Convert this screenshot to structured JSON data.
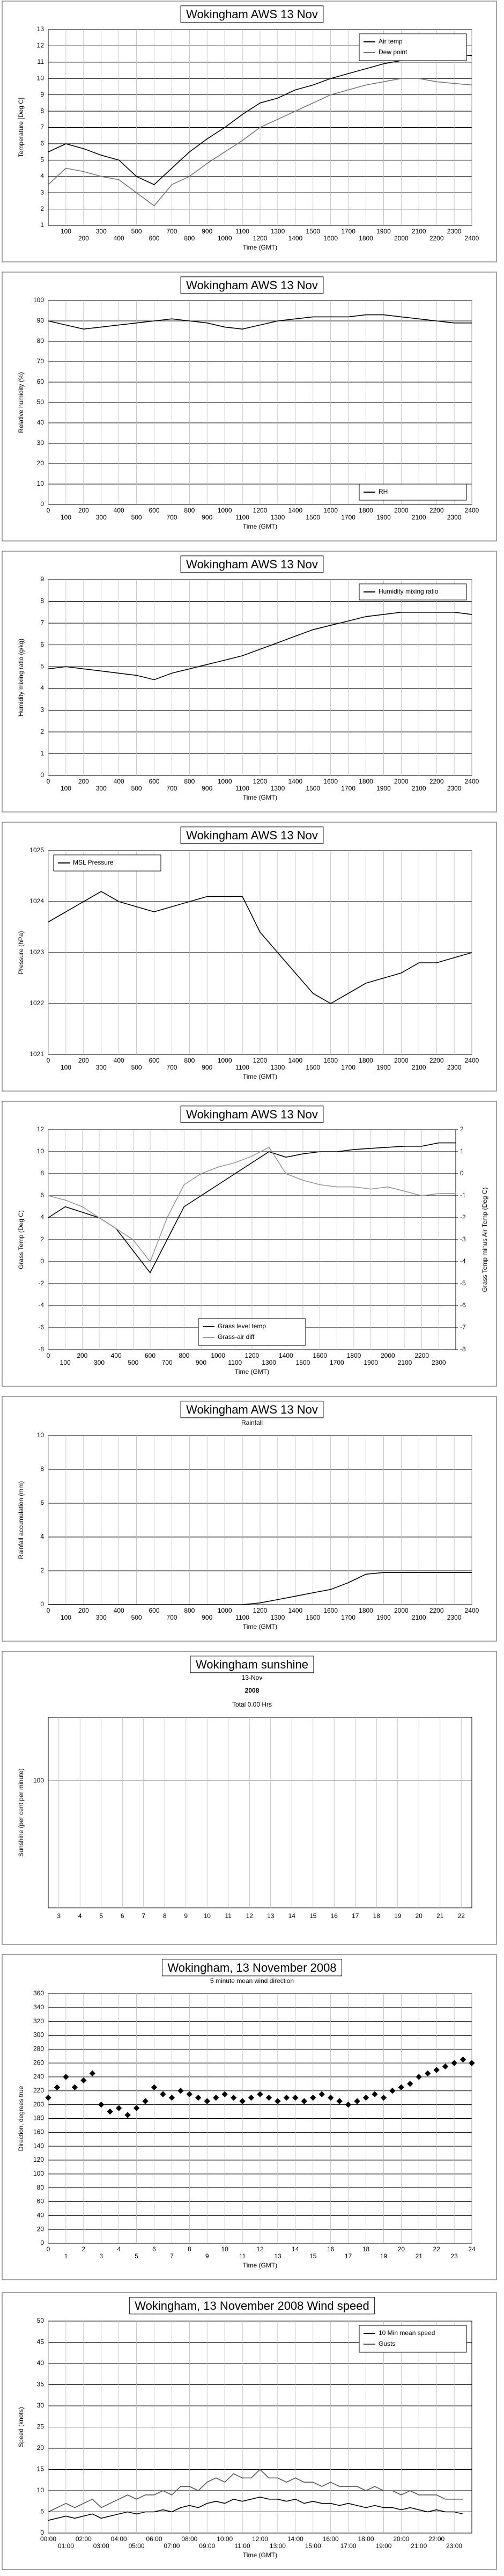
{
  "chart_data": [
    {
      "type": "line",
      "title": "Wokingham AWS 13 Nov",
      "x_label": "Time (GMT)",
      "y_label": "Temperature [Deg C]",
      "x": [
        0,
        100,
        200,
        300,
        400,
        500,
        600,
        700,
        800,
        900,
        1000,
        1100,
        1200,
        1300,
        1400,
        1500,
        1600,
        1700,
        1800,
        1900,
        2000,
        2100,
        2200,
        2300,
        2400
      ],
      "series": [
        {
          "name": "Air temp",
          "color": "#000000",
          "values": [
            5.5,
            6.0,
            5.7,
            5.3,
            5.0,
            4.0,
            3.5,
            4.5,
            5.5,
            6.3,
            7.0,
            7.8,
            8.5,
            8.8,
            9.3,
            9.6,
            10.0,
            10.3,
            10.6,
            10.9,
            11.1,
            11.3,
            11.5,
            11.5,
            11.4
          ]
        },
        {
          "name": "Dew point",
          "color": "#777777",
          "values": [
            3.5,
            4.5,
            4.3,
            4.0,
            3.8,
            3.0,
            2.2,
            3.5,
            4.0,
            4.8,
            5.5,
            6.2,
            7.0,
            7.5,
            8.0,
            8.5,
            9.0,
            9.3,
            9.6,
            9.8,
            10.0,
            10.0,
            9.8,
            9.7,
            9.6
          ]
        }
      ],
      "xlim": [
        0,
        2400
      ],
      "xticks": [
        100,
        200,
        300,
        400,
        500,
        600,
        700,
        800,
        900,
        1000,
        1100,
        1200,
        1300,
        1400,
        1500,
        1600,
        1700,
        1800,
        1900,
        2000,
        2100,
        2200,
        2300,
        2400
      ],
      "ylim": [
        1,
        13
      ],
      "yticks": [
        1,
        2,
        3,
        4,
        5,
        6,
        7,
        8,
        9,
        10,
        11,
        12,
        13
      ],
      "grid": true,
      "legend": "top-right"
    },
    {
      "type": "line",
      "title": "Wokingham AWS 13 Nov",
      "x_label": "Time (GMT)",
      "y_label": "Relative humidity (%)",
      "x": [
        0,
        100,
        200,
        300,
        400,
        500,
        600,
        700,
        800,
        900,
        1000,
        1100,
        1200,
        1300,
        1400,
        1500,
        1600,
        1700,
        1800,
        1900,
        2000,
        2100,
        2200,
        2300,
        2400
      ],
      "series": [
        {
          "name": "RH",
          "color": "#000000",
          "values": [
            90,
            88,
            86,
            87,
            88,
            89,
            90,
            91,
            90,
            89,
            87,
            86,
            88,
            90,
            91,
            92,
            92,
            92,
            93,
            93,
            92,
            91,
            90,
            89,
            89
          ]
        }
      ],
      "xlim": [
        0,
        2400
      ],
      "xticks": [
        0,
        100,
        200,
        300,
        400,
        500,
        600,
        700,
        800,
        900,
        1000,
        1100,
        1200,
        1300,
        1400,
        1500,
        1600,
        1700,
        1800,
        1900,
        2000,
        2100,
        2200,
        2300,
        2400
      ],
      "ylim": [
        0,
        100
      ],
      "yticks": [
        0,
        10,
        20,
        30,
        40,
        50,
        60,
        70,
        80,
        90,
        100
      ],
      "grid": true,
      "legend": "bottom-right"
    },
    {
      "type": "line",
      "title": "Wokingham AWS 13 Nov",
      "x_label": "Time (GMT)",
      "y_label": "Humidity mixing ratio (g/kg)",
      "x": [
        0,
        100,
        200,
        300,
        400,
        500,
        600,
        700,
        800,
        900,
        1000,
        1100,
        1200,
        1300,
        1400,
        1500,
        1600,
        1700,
        1800,
        1900,
        2000,
        2100,
        2200,
        2300,
        2400
      ],
      "series": [
        {
          "name": "Humidity mixing ratio",
          "color": "#000000",
          "values": [
            4.9,
            5.0,
            4.9,
            4.8,
            4.7,
            4.6,
            4.4,
            4.7,
            4.9,
            5.1,
            5.3,
            5.5,
            5.8,
            6.1,
            6.4,
            6.7,
            6.9,
            7.1,
            7.3,
            7.4,
            7.5,
            7.5,
            7.5,
            7.5,
            7.4
          ]
        }
      ],
      "xlim": [
        0,
        2400
      ],
      "xticks": [
        0,
        100,
        200,
        300,
        400,
        500,
        600,
        700,
        800,
        900,
        1000,
        1100,
        1200,
        1300,
        1400,
        1500,
        1600,
        1700,
        1800,
        1900,
        2000,
        2100,
        2200,
        2300,
        2400
      ],
      "ylim": [
        0,
        9
      ],
      "yticks": [
        0,
        1,
        2,
        3,
        4,
        5,
        6,
        7,
        8,
        9
      ],
      "grid": true,
      "legend": "top-right"
    },
    {
      "type": "line",
      "title": "Wokingham AWS 13 Nov",
      "x_label": "Time (GMT)",
      "y_label": "Pressure (hPa)",
      "x": [
        0,
        100,
        200,
        300,
        400,
        500,
        600,
        700,
        800,
        900,
        1000,
        1100,
        1200,
        1300,
        1400,
        1500,
        1600,
        1700,
        1800,
        1900,
        2000,
        2100,
        2200,
        2300,
        2400
      ],
      "series": [
        {
          "name": "MSL Pressure",
          "color": "#000000",
          "values": [
            1023.6,
            1023.8,
            1024.0,
            1024.2,
            1024.0,
            1023.9,
            1023.8,
            1023.9,
            1024.0,
            1024.1,
            1024.1,
            1024.1,
            1023.4,
            1023.0,
            1022.6,
            1022.2,
            1022.0,
            1022.2,
            1022.4,
            1022.5,
            1022.6,
            1022.8,
            1022.8,
            1022.9,
            1023.0
          ]
        }
      ],
      "xlim": [
        0,
        2400
      ],
      "xticks": [
        0,
        100,
        200,
        300,
        400,
        500,
        600,
        700,
        800,
        900,
        1000,
        1100,
        1200,
        1300,
        1400,
        1500,
        1600,
        1700,
        1800,
        1900,
        2000,
        2100,
        2200,
        2300,
        2400
      ],
      "ylim": [
        1021,
        1025
      ],
      "yticks": [
        1021,
        1022,
        1023,
        1024,
        1025
      ],
      "grid": true,
      "legend": "top-left"
    },
    {
      "type": "line",
      "title": "Wokingham AWS 13 Nov",
      "x_label": "Time (GMT)",
      "y_label": "Grass Temp (Deg C)",
      "y2_label": "Grass Temp minus Air Temp (Deg C)",
      "x": [
        0,
        100,
        200,
        300,
        400,
        500,
        600,
        700,
        800,
        900,
        1000,
        1100,
        1200,
        1300,
        1400,
        1500,
        1600,
        1700,
        1800,
        1900,
        2000,
        2100,
        2200,
        2300,
        2400
      ],
      "series": [
        {
          "name": "Grass level temp",
          "color": "#000000",
          "values": [
            4,
            5,
            4.5,
            4,
            3,
            1,
            -1,
            2,
            5,
            6,
            7,
            8,
            9,
            10,
            9.5,
            9.8,
            10,
            10,
            10.2,
            10.3,
            10.4,
            10.5,
            10.5,
            10.8,
            10.8
          ]
        },
        {
          "name": "Grass-air diff",
          "color": "#999999",
          "axis": "y2",
          "values": [
            -1,
            -1.2,
            -1.5,
            -2,
            -2.5,
            -3,
            -4,
            -2,
            -0.5,
            0,
            0.3,
            0.5,
            0.8,
            1.2,
            0,
            -0.3,
            -0.5,
            -0.6,
            -0.6,
            -0.7,
            -0.6,
            -0.8,
            -1.0,
            -0.9,
            -0.9
          ]
        }
      ],
      "xlim": [
        0,
        2400
      ],
      "xticks": [
        0,
        100,
        200,
        300,
        400,
        500,
        600,
        700,
        800,
        900,
        1000,
        1100,
        1200,
        1300,
        1400,
        1500,
        1600,
        1700,
        1800,
        1900,
        2000,
        2100,
        2200,
        2300
      ],
      "ylim": [
        -8,
        12
      ],
      "yticks": [
        -8,
        -6,
        -4,
        -2,
        0,
        2,
        4,
        6,
        8,
        10,
        12
      ],
      "y2lim": [
        -8,
        2
      ],
      "y2ticks": [
        -8,
        -7,
        -6,
        -5,
        -4,
        -3,
        -2,
        -1,
        0,
        1,
        2
      ],
      "grid": true,
      "legend": "bottom-center"
    },
    {
      "type": "line",
      "title": "Wokingham AWS 13 Nov",
      "subtitle": "Rainfall",
      "x_label": "Time (GMT)",
      "y_label": "Rainfall accumulation (mm)",
      "x": [
        0,
        100,
        200,
        300,
        400,
        500,
        600,
        700,
        800,
        900,
        1000,
        1100,
        1200,
        1300,
        1400,
        1500,
        1600,
        1700,
        1800,
        1900,
        2000,
        2100,
        2200,
        2300,
        2400
      ],
      "series": [
        {
          "name": "Rainfall",
          "color": "#000000",
          "values": [
            0,
            0,
            0,
            0,
            0,
            0,
            0,
            0,
            0,
            0,
            0,
            0,
            0.1,
            0.3,
            0.5,
            0.7,
            0.9,
            1.3,
            1.8,
            1.9,
            1.9,
            1.9,
            1.9,
            1.9,
            1.9
          ]
        }
      ],
      "xlim": [
        0,
        2400
      ],
      "xticks": [
        0,
        100,
        200,
        300,
        400,
        500,
        600,
        700,
        800,
        900,
        1000,
        1100,
        1200,
        1300,
        1400,
        1500,
        1600,
        1700,
        1800,
        1900,
        2000,
        2100,
        2200,
        2300,
        2400
      ],
      "ylim": [
        0,
        10
      ],
      "yticks": [
        0,
        2,
        4,
        6,
        8,
        10
      ],
      "grid": true
    },
    {
      "type": "bar",
      "title": "Wokingham sunshine",
      "subtitle": "13-Nov",
      "annotations": [
        "2008",
        "Total 0.00 Hrs"
      ],
      "y_label": "Sunshine (per cent per minute)",
      "categories": [
        "3",
        "4",
        "5",
        "6",
        "7",
        "8",
        "9",
        "10",
        "11",
        "12",
        "13",
        "14",
        "15",
        "16",
        "17",
        "18",
        "19",
        "20",
        "21",
        "22"
      ],
      "values": [
        0,
        0,
        0,
        0,
        0,
        0,
        0,
        0,
        0,
        0,
        0,
        0,
        0,
        0,
        0,
        0,
        0,
        0,
        0,
        0
      ],
      "color": "#000000",
      "ylim": [
        0,
        150
      ],
      "yticks": [
        100
      ],
      "grid": true
    },
    {
      "type": "scatter",
      "title": "Wokingham,  13 November 2008",
      "subtitle": "5 minute mean wind direction",
      "x_label": "Time (GMT)",
      "y_label": "Direction, degrees true",
      "x": [
        0,
        0.5,
        1,
        1.5,
        2,
        2.5,
        3,
        3.5,
        4,
        4.5,
        5,
        5.5,
        6,
        6.5,
        7,
        7.5,
        8,
        8.5,
        9,
        9.5,
        10,
        10.5,
        11,
        11.5,
        12,
        12.5,
        13,
        13.5,
        14,
        14.5,
        15,
        15.5,
        16,
        16.5,
        17,
        17.5,
        18,
        18.5,
        19,
        19.5,
        20,
        20.5,
        21,
        21.5,
        22,
        22.5,
        23,
        23.5,
        24
      ],
      "series": [
        {
          "name": "Direction",
          "color": "#000000",
          "values": [
            210,
            225,
            240,
            225,
            235,
            245,
            200,
            190,
            195,
            185,
            195,
            205,
            225,
            215,
            210,
            220,
            215,
            210,
            205,
            210,
            215,
            210,
            205,
            210,
            215,
            210,
            205,
            210,
            210,
            205,
            210,
            215,
            210,
            205,
            200,
            205,
            210,
            215,
            210,
            220,
            225,
            230,
            240,
            245,
            250,
            255,
            260,
            265,
            260
          ]
        }
      ],
      "xlim": [
        0,
        24
      ],
      "xticks": [
        0,
        1,
        2,
        3,
        4,
        5,
        6,
        7,
        8,
        9,
        10,
        11,
        12,
        13,
        14,
        15,
        16,
        17,
        18,
        19,
        20,
        21,
        22,
        23,
        24
      ],
      "ylim": [
        0,
        360
      ],
      "yticks": [
        0,
        20,
        40,
        60,
        80,
        100,
        120,
        140,
        160,
        180,
        200,
        220,
        240,
        260,
        280,
        300,
        320,
        340,
        360
      ],
      "grid": true
    },
    {
      "type": "line",
      "title": "Wokingham,  13 November 2008     Wind speed",
      "x_label": "Time (GMT)",
      "y_label": "Speed (knots)",
      "x": [
        0,
        0.5,
        1,
        1.5,
        2,
        2.5,
        3,
        3.5,
        4,
        4.5,
        5,
        5.5,
        6,
        6.5,
        7,
        7.5,
        8,
        8.5,
        9,
        9.5,
        10,
        10.5,
        11,
        11.5,
        12,
        12.5,
        13,
        13.5,
        14,
        14.5,
        15,
        15.5,
        16,
        16.5,
        17,
        17.5,
        18,
        18.5,
        19,
        19.5,
        20,
        20.5,
        21,
        21.5,
        22,
        22.5,
        23,
        23.5
      ],
      "series": [
        {
          "name": "10 Min mean speed",
          "color": "#000000",
          "values": [
            3,
            3.5,
            4,
            3.5,
            4,
            4.5,
            3.5,
            4,
            4.5,
            5,
            4.5,
            5,
            5,
            5.5,
            5,
            6,
            6.5,
            6,
            7,
            7.5,
            7,
            8,
            7.5,
            8,
            8.5,
            8,
            8,
            7.5,
            8,
            7,
            7.5,
            7,
            7,
            6.5,
            7,
            6.5,
            6,
            6.5,
            6,
            6,
            5.5,
            6,
            5.5,
            5,
            5.5,
            5,
            5,
            4.5
          ]
        },
        {
          "name": "Gusts",
          "color": "#555555",
          "values": [
            5,
            6,
            7,
            6,
            7,
            8,
            6,
            7,
            8,
            9,
            8,
            9,
            9,
            10,
            9,
            11,
            11,
            10,
            12,
            13,
            12,
            14,
            13,
            13,
            15,
            13,
            13,
            12,
            13,
            12,
            12,
            11,
            12,
            11,
            11,
            11,
            10,
            11,
            10,
            10,
            9,
            10,
            9,
            9,
            9,
            8,
            8,
            8
          ]
        }
      ],
      "xlim": [
        0,
        24
      ],
      "xticks": [
        {
          "value": 0,
          "label": "00:00"
        },
        {
          "value": 1,
          "label": "01:00"
        },
        {
          "value": 2,
          "label": "02:00"
        },
        {
          "value": 3,
          "label": "03:00"
        },
        {
          "value": 4,
          "label": "04:00"
        },
        {
          "value": 5,
          "label": "05:00"
        },
        {
          "value": 6,
          "label": "06:00"
        },
        {
          "value": 7,
          "label": "07:00"
        },
        {
          "value": 8,
          "label": "08:00"
        },
        {
          "value": 9,
          "label": "09:00"
        },
        {
          "value": 10,
          "label": "10:00"
        },
        {
          "value": 11,
          "label": "11:00"
        },
        {
          "value": 12,
          "label": "12:00"
        },
        {
          "value": 13,
          "label": "13:00"
        },
        {
          "value": 14,
          "label": "14:00"
        },
        {
          "value": 15,
          "label": "15:00"
        },
        {
          "value": 16,
          "label": "16:00"
        },
        {
          "value": 17,
          "label": "17:00"
        },
        {
          "value": 18,
          "label": "18:00"
        },
        {
          "value": 19,
          "label": "19:00"
        },
        {
          "value": 20,
          "label": "20:00"
        },
        {
          "value": 21,
          "label": "21:00"
        },
        {
          "value": 22,
          "label": "22:00"
        },
        {
          "value": 23,
          "label": "23:00"
        }
      ],
      "ylim": [
        0,
        50
      ],
      "yticks": [
        0,
        5,
        10,
        15,
        20,
        25,
        30,
        35,
        40,
        45,
        50
      ],
      "grid": true,
      "legend": "top-right"
    }
  ]
}
